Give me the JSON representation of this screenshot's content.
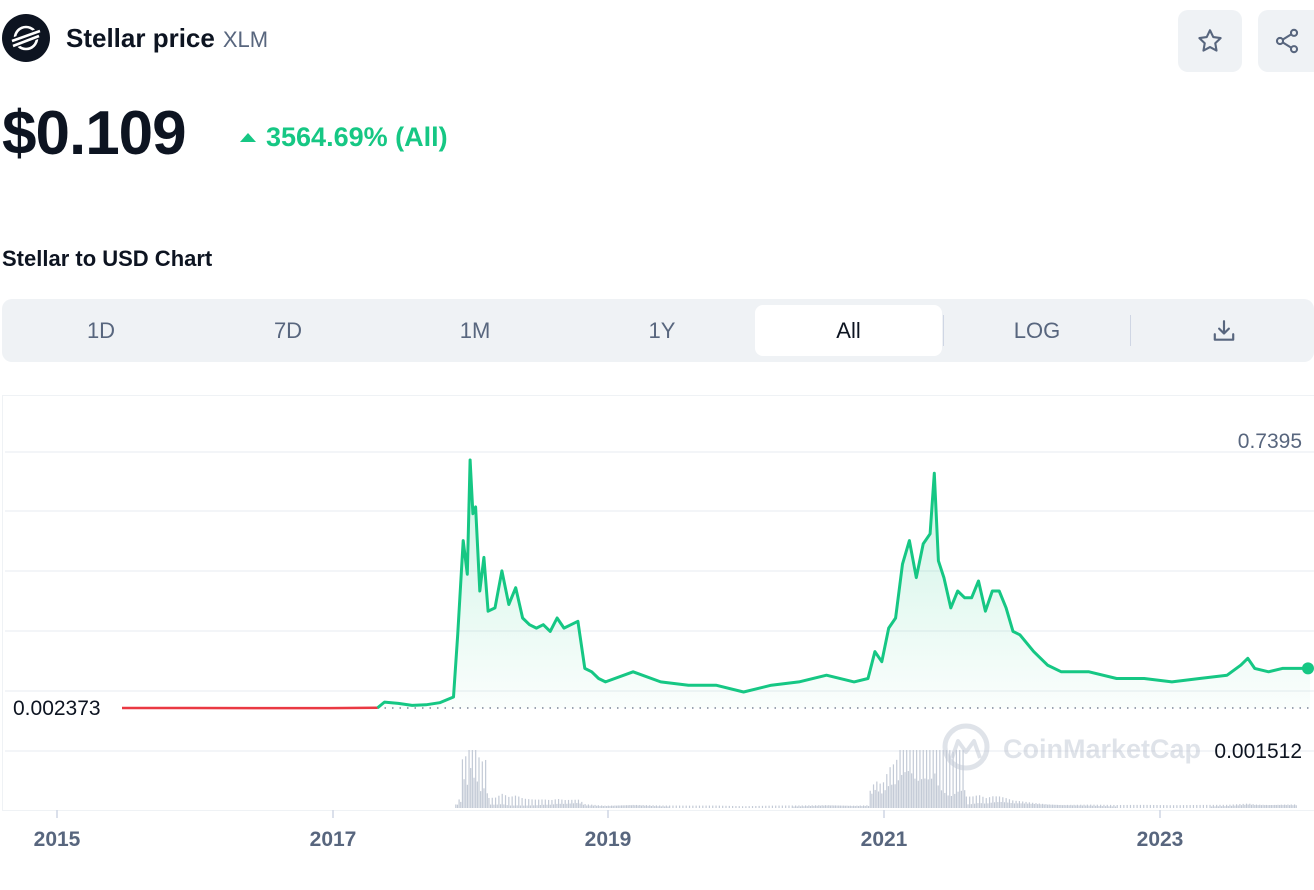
{
  "header": {
    "title": "Stellar price",
    "symbol": "XLM",
    "logo_icon": "stellar-logo-icon",
    "star_icon": "star-icon",
    "share_icon": "share-icon"
  },
  "price": {
    "value": "$0.109",
    "change": "3564.69% (All)",
    "change_direction": "up",
    "change_color": "#16c784"
  },
  "chart_section": {
    "title": "Stellar to USD Chart"
  },
  "tabs": {
    "items": [
      "1D",
      "7D",
      "1M",
      "1Y",
      "All",
      "LOG"
    ],
    "active": "All",
    "download_icon": "download-icon"
  },
  "chart_data": {
    "type": "area",
    "title": "",
    "xlabel": "",
    "ylabel": "",
    "x_tick_labels": [
      "2015",
      "2017",
      "2019",
      "2021",
      "2023"
    ],
    "y_high_label": "0.7395",
    "baseline_label": "0.002373",
    "volume_label": "0.001512",
    "watermark": "CoinMarketCap",
    "line_color": "#16c784",
    "below_baseline_color": "#ea3943",
    "xlim": [
      2015.5,
      2024.1
    ],
    "ylim": [
      0,
      0.8
    ],
    "series": [
      {
        "x": [
          2015.5,
          2016.0,
          2016.5,
          2017.0,
          2017.35,
          2017.4,
          2017.5,
          2017.6,
          2017.7,
          2017.8,
          2017.9,
          2017.93,
          2017.97,
          2018.0,
          2018.02,
          2018.04,
          2018.06,
          2018.09,
          2018.12,
          2018.15,
          2018.2,
          2018.25,
          2018.3,
          2018.35,
          2018.4,
          2018.45,
          2018.5,
          2018.55,
          2018.6,
          2018.65,
          2018.7,
          2018.75,
          2018.8,
          2018.85,
          2018.9,
          2018.95,
          2019.0,
          2019.2,
          2019.4,
          2019.6,
          2019.8,
          2020.0,
          2020.2,
          2020.4,
          2020.6,
          2020.8,
          2020.9,
          2020.95,
          2021.0,
          2021.05,
          2021.1,
          2021.15,
          2021.2,
          2021.25,
          2021.3,
          2021.35,
          2021.38,
          2021.41,
          2021.45,
          2021.5,
          2021.55,
          2021.6,
          2021.65,
          2021.7,
          2021.75,
          2021.8,
          2021.85,
          2021.9,
          2021.95,
          2022.0,
          2022.1,
          2022.2,
          2022.3,
          2022.4,
          2022.5,
          2022.7,
          2022.9,
          2023.1,
          2023.3,
          2023.5,
          2023.6,
          2023.65,
          2023.7,
          2023.8,
          2023.9,
          2024.0,
          2024.1
        ],
        "values": [
          0.0024,
          0.0023,
          0.0021,
          0.0022,
          0.003,
          0.02,
          0.016,
          0.01,
          0.012,
          0.018,
          0.035,
          0.22,
          0.5,
          0.4,
          0.7395,
          0.58,
          0.6,
          0.35,
          0.45,
          0.29,
          0.3,
          0.41,
          0.31,
          0.36,
          0.27,
          0.25,
          0.24,
          0.25,
          0.23,
          0.27,
          0.24,
          0.25,
          0.26,
          0.12,
          0.11,
          0.09,
          0.08,
          0.11,
          0.08,
          0.07,
          0.07,
          0.05,
          0.07,
          0.08,
          0.1,
          0.08,
          0.09,
          0.17,
          0.14,
          0.24,
          0.27,
          0.43,
          0.5,
          0.39,
          0.49,
          0.52,
          0.7,
          0.44,
          0.39,
          0.3,
          0.35,
          0.33,
          0.33,
          0.38,
          0.29,
          0.35,
          0.35,
          0.3,
          0.23,
          0.22,
          0.17,
          0.13,
          0.11,
          0.11,
          0.11,
          0.09,
          0.09,
          0.08,
          0.09,
          0.1,
          0.13,
          0.15,
          0.12,
          0.11,
          0.12,
          0.12,
          0.12
        ]
      }
    ]
  }
}
